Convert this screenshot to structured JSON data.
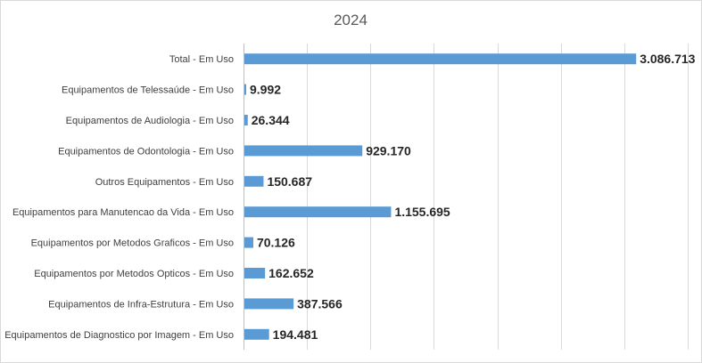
{
  "chart_data": {
    "type": "bar",
    "orientation": "horizontal",
    "title": "2024",
    "xlabel": "",
    "ylabel": "",
    "categories": [
      "Total - Em Uso",
      "Equipamentos de Telessaúde - Em Uso",
      "Equipamentos de Audiologia - Em Uso",
      "Equipamentos de Odontologia - Em Uso",
      "Outros Equipamentos - Em Uso",
      "Equipamentos para Manutencao da Vida - Em Uso",
      "Equipamentos por Metodos Graficos - Em Uso",
      "Equipamentos por Metodos Opticos - Em Uso",
      "Equipamentos de Infra-Estrutura - Em Uso",
      "Equipamentos de Diagnostico por Imagem - Em Uso"
    ],
    "values": [
      3086713,
      9992,
      26344,
      929170,
      150687,
      1155695,
      70126,
      162652,
      387566,
      194481
    ],
    "value_labels": [
      "3.086.713",
      "9.992",
      "26.344",
      "929.170",
      "150.687",
      "1.155.695",
      "70.126",
      "162.652",
      "387.566",
      "194.481"
    ],
    "xlim": [
      0,
      3500000
    ],
    "grid_step": 500000,
    "grid": true,
    "legend": "none",
    "bar_color": "#5b9bd5"
  }
}
